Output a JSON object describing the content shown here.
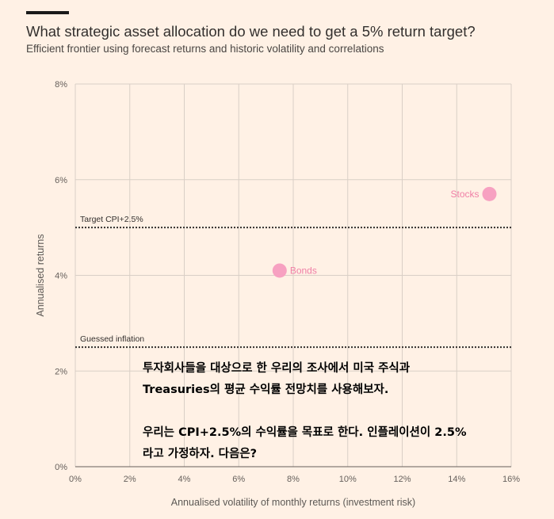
{
  "header": {
    "title": "What strategic asset allocation do we need to get a 5% return target?",
    "subtitle": "Efficient frontier using forecast returns and historic volatility and correlations"
  },
  "chart_data": {
    "type": "scatter",
    "xlabel": "Annualised volatility of monthly returns (investment risk)",
    "ylabel": "Annualised returns",
    "xlim": [
      0,
      16
    ],
    "ylim": [
      0,
      8
    ],
    "x_ticks": [
      0,
      2,
      4,
      6,
      8,
      10,
      12,
      14,
      16
    ],
    "y_ticks": [
      0,
      2,
      4,
      6,
      8
    ],
    "tick_suffix": "%",
    "grid": true,
    "points": [
      {
        "name": "Stocks",
        "x": 15.2,
        "y": 5.7,
        "color": "#f7a1c1",
        "label_side": "left"
      },
      {
        "name": "Bonds",
        "x": 7.5,
        "y": 4.1,
        "color": "#f7a1c1",
        "label_side": "right"
      }
    ],
    "reference_lines": [
      {
        "label": "Target CPI+2.5%",
        "y": 5.0
      },
      {
        "label": "Guessed inflation",
        "y": 2.5
      }
    ]
  },
  "annotation": {
    "paragraphs": [
      [
        "투자회사들을 대상으로 한 우리의 조사에서 미국 주식과",
        "Treasuries의 평균 수익률 전망치를 사용해보자."
      ],
      [
        "우리는 CPI+2.5%의 수익률을 목표로 한다. 인플레이션이 2.5%",
        "라고 가정하자. 다음은?"
      ]
    ]
  }
}
